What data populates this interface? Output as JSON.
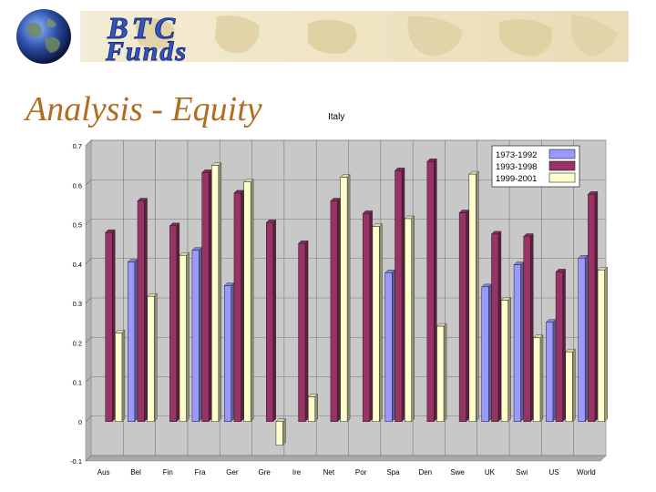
{
  "header": {
    "logo_text_line1": "BTC",
    "logo_text_line2": "Funds",
    "title": "Analysis - Equity"
  },
  "colors": {
    "series": [
      "#9999ff",
      "#993366",
      "#ffffcc"
    ],
    "banner": "#efe4c3",
    "title": "#b36b1f",
    "logo_text": "#3355bb"
  },
  "icons": {
    "logo": "globe-icon"
  },
  "chart_data": {
    "type": "bar",
    "title": "Italy",
    "categories": [
      "Aus",
      "Bel",
      "Fin",
      "Fra",
      "Ger",
      "Gre",
      "Ire",
      "Net",
      "Por",
      "Spa",
      "Den",
      "Swe",
      "UK",
      "Swi",
      "US",
      "World"
    ],
    "series": [
      {
        "name": "1973-1992",
        "values": [
          null,
          0.405,
          null,
          0.435,
          0.345,
          null,
          null,
          null,
          null,
          0.378,
          null,
          null,
          0.342,
          0.398,
          0.252,
          0.415
        ]
      },
      {
        "name": "1993-1998",
        "values": [
          0.48,
          0.56,
          0.497,
          0.632,
          0.58,
          0.505,
          0.452,
          0.56,
          0.528,
          0.637,
          0.66,
          0.53,
          0.476,
          0.47,
          0.38,
          0.577
        ]
      },
      {
        "name": "1999-2001",
        "values": [
          0.225,
          0.318,
          0.422,
          0.65,
          0.608,
          -0.06,
          0.063,
          0.62,
          0.495,
          0.515,
          0.242,
          0.628,
          0.308,
          0.213,
          0.177,
          0.385
        ]
      }
    ],
    "ylim": [
      -0.1,
      0.7
    ],
    "yticks": [
      "-0.1",
      "0",
      "0.1",
      "0.2",
      "0.3",
      "0.4",
      "0.5",
      "0.6",
      "0.7"
    ],
    "legend": "top-right",
    "grid": true
  }
}
